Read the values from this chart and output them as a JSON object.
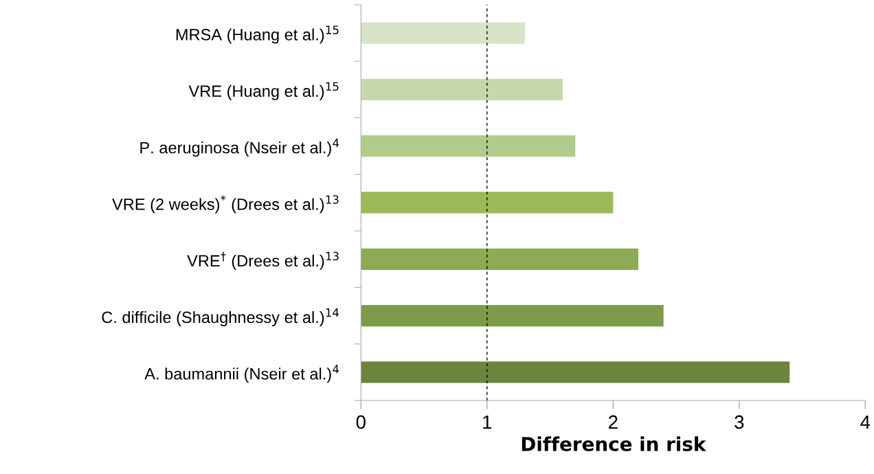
{
  "chart_data": {
    "type": "bar",
    "orientation": "horizontal",
    "xlabel": "Difference in risk",
    "categories": [
      "MRSA (Huang et al.)$^{15}$",
      "VRE (Huang et al.)$^{15}$",
      "P. aeruginosa (Nseir et al.)$^{4}$",
      "VRE (2 weeks)$^{*}$ (Drees et al.)$^{13}$",
      "VRE$^{†}$ (Drees et al.)$^{13}$",
      "C. difficile (Shaughnessy et al.)$^{14}$",
      "A. baumannii (Nseir et al.)$^{4}$"
    ],
    "values": [
      1.3,
      1.6,
      1.7,
      2.0,
      2.2,
      2.4,
      3.4
    ],
    "colors": [
      "#d8e4c8",
      "#c6d8ab",
      "#b1cb8c",
      "#9bbb59",
      "#8cab54",
      "#7e9b4a",
      "#6a863e"
    ],
    "xlim": [
      0,
      4
    ],
    "xticks": [
      0,
      1,
      2,
      3,
      4
    ],
    "ref_lines": [
      {
        "axis": "x",
        "value": 1,
        "color": "#000000",
        "line_style": "dashed"
      }
    ],
    "grid": false,
    "legend": false
  }
}
